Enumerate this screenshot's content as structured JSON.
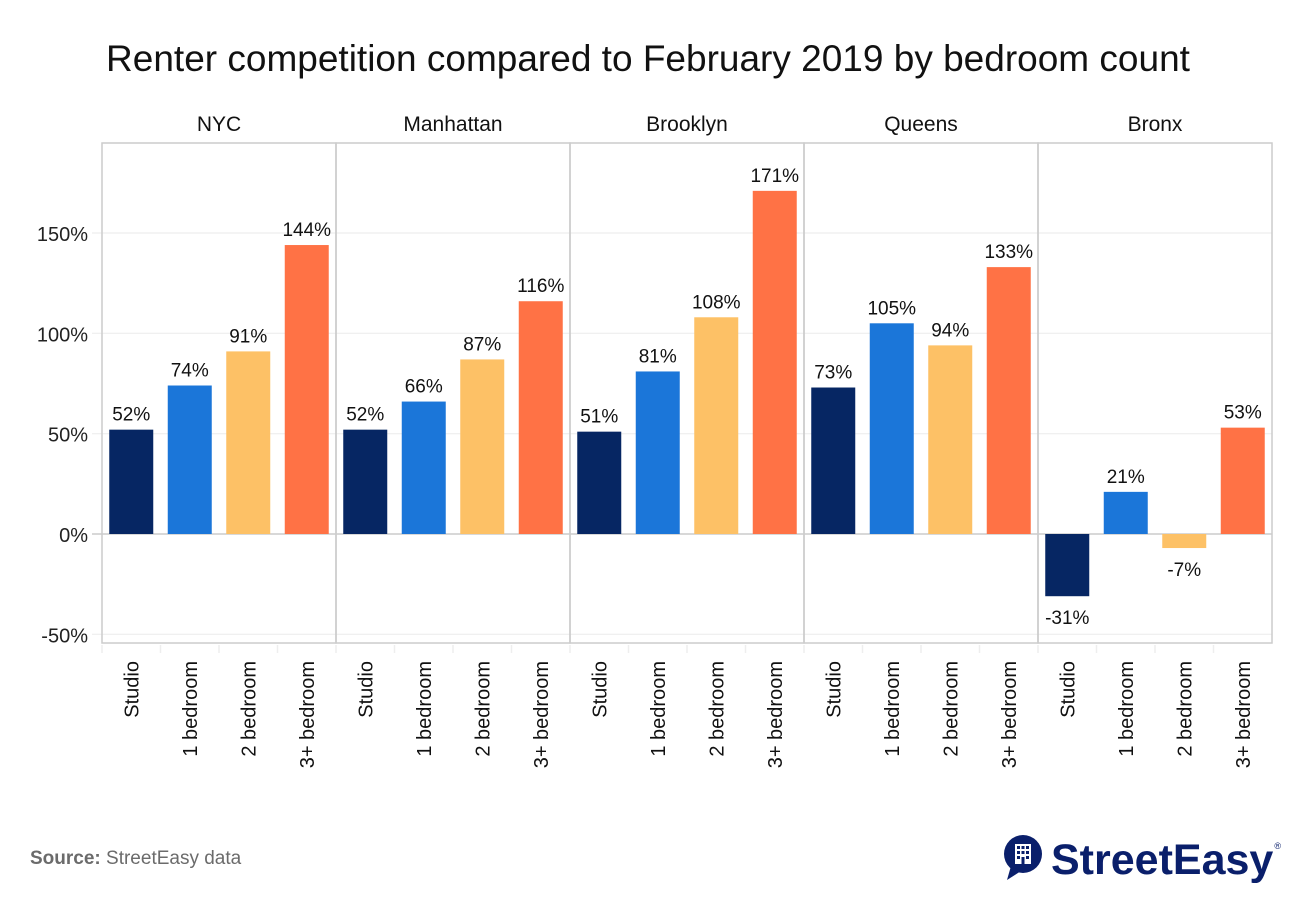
{
  "title": "Renter competition compared to February 2019 by bedroom count",
  "source": {
    "label": "Source:",
    "text": "StreetEasy data"
  },
  "logo": {
    "name": "StreetEasy",
    "mark": "®",
    "color": "#0a1f6b"
  },
  "chart_data": {
    "type": "bar",
    "title": "Renter competition compared to February 2019 by bedroom count",
    "xlabel": "",
    "ylabel": "",
    "ylim": [
      -55,
      195
    ],
    "yticks": [
      -50,
      0,
      50,
      100,
      150
    ],
    "ytick_labels": [
      "-50%",
      "0%",
      "50%",
      "100%",
      "150%"
    ],
    "grid": true,
    "legend": "none",
    "categories": [
      "Studio",
      "1 bedroom",
      "2 bedroom",
      "3+ bedroom"
    ],
    "colors": {
      "Studio": "#062663",
      "1 bedroom": "#1b76d9",
      "2 bedroom": "#fdc166",
      "3+ bedroom": "#ff7245"
    },
    "panels": [
      {
        "name": "NYC",
        "values": [
          52,
          74,
          91,
          144
        ],
        "labels": [
          "52%",
          "74%",
          "91%",
          "144%"
        ]
      },
      {
        "name": "Manhattan",
        "values": [
          52,
          66,
          87,
          116
        ],
        "labels": [
          "52%",
          "66%",
          "87%",
          "116%"
        ]
      },
      {
        "name": "Brooklyn",
        "values": [
          51,
          81,
          108,
          171
        ],
        "labels": [
          "51%",
          "81%",
          "108%",
          "171%"
        ]
      },
      {
        "name": "Queens",
        "values": [
          73,
          105,
          94,
          133
        ],
        "labels": [
          "73%",
          "105%",
          "94%",
          "133%"
        ]
      },
      {
        "name": "Bronx",
        "values": [
          -31,
          21,
          -7,
          53
        ],
        "labels": [
          "-31%",
          "21%",
          "-7%",
          "53%"
        ]
      }
    ]
  }
}
